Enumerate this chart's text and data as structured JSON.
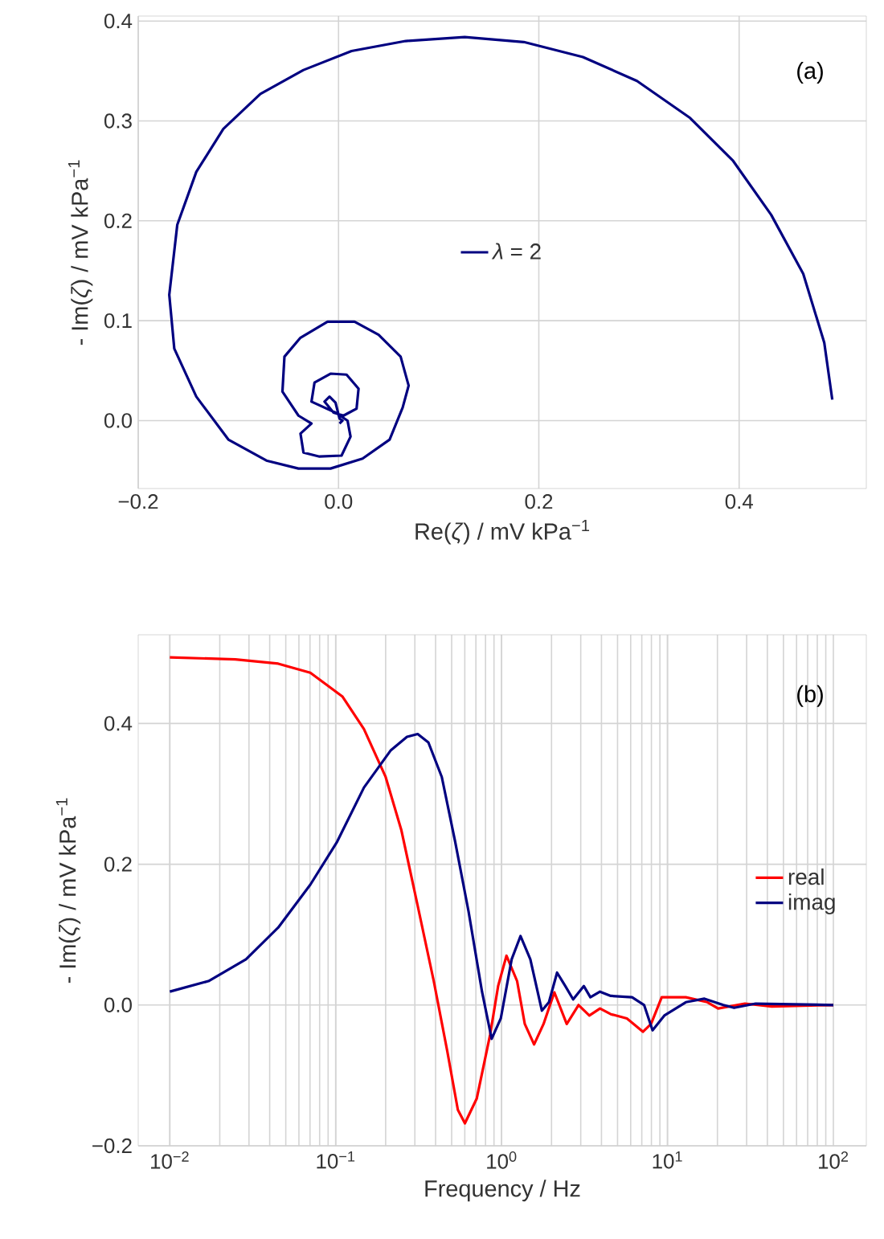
{
  "chart_data": [
    {
      "type": "line",
      "xlabel": "Re(*ζ*) / mV kPa$^{−1}$",
      "ylabel": "- Im(*ζ*) / mV kPa$^{−1}$",
      "annotations": [
        "(a)"
      ],
      "xlim": [
        -0.2,
        0.527
      ],
      "ylim": [
        -0.068,
        0.405
      ],
      "xticks": [
        {
          "value": -0.2,
          "label": "−0.2"
        },
        {
          "value": 0,
          "label": "0.0"
        },
        {
          "value": 0.2,
          "label": "0.2"
        },
        {
          "value": 0.4,
          "label": "0.4"
        }
      ],
      "yticks": [
        {
          "value": 0,
          "label": "0.0"
        },
        {
          "value": 0.1,
          "label": "0.1"
        },
        {
          "value": 0.2,
          "label": "0.2"
        },
        {
          "value": 0.3,
          "label": "0.3"
        },
        {
          "value": 0.4,
          "label": "0.4"
        }
      ],
      "grid": true,
      "legend": "center",
      "series": [
        {
          "name": "*λ* = 2",
          "color": "#000080",
          "x": [
            0.493,
            0.485,
            0.464,
            0.432,
            0.394,
            0.351,
            0.298,
            0.244,
            0.185,
            0.126,
            0.067,
            0.013,
            -0.035,
            -0.078,
            -0.115,
            -0.142,
            -0.161,
            -0.169,
            -0.164,
            -0.142,
            -0.11,
            -0.072,
            -0.04,
            -0.008,
            0.024,
            0.051,
            0.064,
            0.07,
            0.062,
            0.04,
            0.016,
            -0.011,
            -0.038,
            -0.054,
            -0.056,
            -0.04,
            -0.027,
            -0.038,
            -0.035,
            -0.019,
            0.003,
            0.012,
            0.009,
            -0.003,
            -0.027,
            -0.024,
            -0.008,
            0.008,
            0.02,
            0.018,
            0.005,
            -0.005,
            -0.014,
            -0.009,
            -0.003,
            0.001,
            0.004,
            0.001
          ],
          "values": [
            0.021,
            0.078,
            0.147,
            0.206,
            0.26,
            0.303,
            0.34,
            0.364,
            0.379,
            0.384,
            0.38,
            0.37,
            0.351,
            0.327,
            0.292,
            0.249,
            0.196,
            0.126,
            0.072,
            0.024,
            -0.019,
            -0.04,
            -0.048,
            -0.048,
            -0.038,
            -0.019,
            0.013,
            0.035,
            0.064,
            0.086,
            0.099,
            0.099,
            0.083,
            0.064,
            0.029,
            0.005,
            -0.003,
            -0.013,
            -0.032,
            -0.036,
            -0.035,
            -0.016,
            0,
            0.008,
            0.019,
            0.038,
            0.047,
            0.046,
            0.032,
            0.012,
            0.005,
            0.008,
            0.019,
            0.024,
            0.018,
            0.002,
            0,
            -0.003
          ]
        }
      ]
    },
    {
      "type": "line",
      "xlabel": "Frequency / Hz",
      "ylabel": "- Im(*ζ*) / mV kPa$^{−1}$",
      "annotations": [
        "(b)"
      ],
      "log": "x",
      "xlim": [
        0.00645,
        158
      ],
      "ylim": [
        -0.2,
        0.526
      ],
      "xticks": [
        {
          "value": 0.01,
          "label": "10$^{−2}$"
        },
        {
          "value": 0.1,
          "label": "10$^{−1}$"
        },
        {
          "value": 1,
          "label": "10$^{0}$"
        },
        {
          "value": 10,
          "label": "10$^{1}$"
        },
        {
          "value": 100,
          "label": "10$^{2}$"
        }
      ],
      "yticks": [
        {
          "value": -0.2,
          "label": "−0.2"
        },
        {
          "value": 0,
          "label": "0.0"
        },
        {
          "value": 0.2,
          "label": "0.2"
        },
        {
          "value": 0.4,
          "label": "0.4"
        }
      ],
      "grid": true,
      "legend": "right",
      "series": [
        {
          "name": "real",
          "color": "#ff0000",
          "x": [
            0.01,
            0.0248,
            0.045,
            0.0703,
            0.11,
            0.148,
            0.2,
            0.249,
            0.312,
            0.39,
            0.47,
            0.545,
            0.601,
            0.708,
            0.853,
            0.953,
            1.07,
            1.24,
            1.38,
            1.57,
            1.79,
            2.08,
            2.47,
            2.91,
            3.38,
            3.92,
            4.55,
            5.69,
            7.11,
            7.96,
            9.23,
            12.9,
            17.4,
            20.2,
            29.3,
            42.5,
            100
          ],
          "values": [
            0.494,
            0.491,
            0.485,
            0.472,
            0.438,
            0.392,
            0.324,
            0.248,
            0.141,
            0.034,
            -0.065,
            -0.149,
            -0.168,
            -0.133,
            -0.042,
            0.027,
            0.07,
            0.034,
            -0.027,
            -0.056,
            -0.027,
            0.018,
            -0.027,
            0,
            -0.015,
            -0.005,
            -0.013,
            -0.019,
            -0.038,
            -0.027,
            0.011,
            0.011,
            0.004,
            -0.005,
            0.002,
            -0.002,
            0
          ]
        },
        {
          "name": "imag",
          "color": "#000080",
          "x": [
            0.01,
            0.0171,
            0.0288,
            0.045,
            0.0703,
            0.102,
            0.148,
            0.215,
            0.269,
            0.312,
            0.362,
            0.436,
            0.525,
            0.632,
            0.762,
            0.871,
            0.989,
            1.15,
            1.3,
            1.49,
            1.75,
            1.93,
            2.16,
            2.42,
            2.7,
            3.13,
            3.43,
            3.92,
            4.55,
            6.12,
            7.23,
            8.13,
            9.57,
            12.9,
            16.7,
            21.7,
            25.2,
            34,
            100
          ],
          "values": [
            0.019,
            0.034,
            0.065,
            0.11,
            0.171,
            0.232,
            0.309,
            0.362,
            0.381,
            0.385,
            0.373,
            0.324,
            0.232,
            0.133,
            0.019,
            -0.048,
            -0.019,
            0.065,
            0.098,
            0.065,
            -0.008,
            0.004,
            0.046,
            0.027,
            0.008,
            0.027,
            0.011,
            0.019,
            0.013,
            0.011,
            0,
            -0.036,
            -0.015,
            0.004,
            0.009,
            0,
            -0.004,
            0.002,
            0
          ]
        }
      ]
    }
  ]
}
